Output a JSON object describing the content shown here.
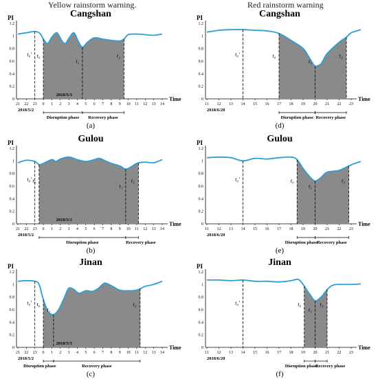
{
  "column_titles": {
    "left": "Yellow rainstorm warning.",
    "right": "Red rainstorm warning"
  },
  "colors": {
    "curve": "#2a9fd6",
    "shade": "#8a8a8a",
    "axis": "#000000"
  },
  "chart_data": [
    {
      "id": "a",
      "type": "area",
      "title": "Cangshan",
      "caption": "(a)",
      "ylabel": "PI",
      "xlabel": "Time",
      "yticks": [
        "0",
        "0.2",
        "0.4",
        "0.6",
        "0.8",
        "1",
        "1.2"
      ],
      "ylim": [
        0,
        1.2
      ],
      "x_ticks": [
        "21",
        "22",
        "23",
        "0",
        "1",
        "2",
        "3",
        "4",
        "5",
        "6",
        "7",
        "8",
        "9",
        "10",
        "11",
        "12",
        "13",
        "14"
      ],
      "date_labels": [
        "2018/5/2",
        "2018/5/3"
      ],
      "curve": [
        [
          0,
          1.03
        ],
        [
          1,
          1.05
        ],
        [
          2,
          1.07
        ],
        [
          2.6,
          1.04
        ],
        [
          3,
          0.95
        ],
        [
          3.5,
          0.88
        ],
        [
          4,
          0.98
        ],
        [
          4.6,
          1.05
        ],
        [
          5.2,
          0.92
        ],
        [
          5.6,
          0.88
        ],
        [
          6,
          0.96
        ],
        [
          6.6,
          1.05
        ],
        [
          7.1,
          0.92
        ],
        [
          7.6,
          0.82
        ],
        [
          8.2,
          0.9
        ],
        [
          9,
          0.97
        ],
        [
          10,
          0.95
        ],
        [
          11,
          0.93
        ],
        [
          12,
          0.92
        ],
        [
          12.5,
          0.95
        ],
        [
          13,
          1.02
        ],
        [
          14,
          1.03
        ],
        [
          15,
          1.02
        ],
        [
          16,
          1.01
        ],
        [
          17,
          1.03
        ]
      ],
      "shade_range": [
        3,
        12.5
      ],
      "markers": [
        {
          "x": 2,
          "label": "t₀'"
        },
        {
          "x": 3,
          "label": "t₀"
        },
        {
          "x": 7.6,
          "label": "t₁"
        },
        {
          "x": 12.5,
          "label": "t₂"
        }
      ],
      "phases": [
        {
          "label": "Disruption phase",
          "from": 3,
          "to": 7.6
        },
        {
          "label": "Recovery phase",
          "from": 7.6,
          "to": 12.5
        }
      ]
    },
    {
      "id": "b",
      "type": "area",
      "title": "Gulou",
      "caption": "(b)",
      "ylabel": "PI",
      "xlabel": "Time",
      "yticks": [
        "0",
        "0.2",
        "0.4",
        "0.6",
        "0.8",
        "1",
        "1.2"
      ],
      "ylim": [
        0,
        1.2
      ],
      "x_ticks": [
        "21",
        "22",
        "23",
        "0",
        "1",
        "2",
        "3",
        "4",
        "5",
        "6",
        "7",
        "8",
        "9",
        "10",
        "11",
        "12",
        "13",
        "14"
      ],
      "date_labels": [
        "2018/5/2",
        "2018/5/3"
      ],
      "curve": [
        [
          0,
          0.97
        ],
        [
          1,
          1.01
        ],
        [
          2,
          0.99
        ],
        [
          2.5,
          0.94
        ],
        [
          3,
          0.96
        ],
        [
          4,
          1.02
        ],
        [
          4.5,
          0.99
        ],
        [
          5,
          1.03
        ],
        [
          6,
          1.06
        ],
        [
          7,
          1.02
        ],
        [
          8,
          0.99
        ],
        [
          9,
          1.02
        ],
        [
          9.6,
          1.04
        ],
        [
          10.3,
          1.0
        ],
        [
          11,
          0.96
        ],
        [
          12,
          0.92
        ],
        [
          12.7,
          0.87
        ],
        [
          13.4,
          0.91
        ],
        [
          14,
          0.96
        ],
        [
          15,
          0.98
        ],
        [
          16,
          0.97
        ],
        [
          17,
          1.02
        ]
      ],
      "shade_range": [
        2.5,
        14.2
      ],
      "markers": [
        {
          "x": 2,
          "label": "t₀'"
        },
        {
          "x": 2.5,
          "label": "t₀"
        },
        {
          "x": 12.7,
          "label": "t₁"
        },
        {
          "x": 14.2,
          "label": "t₂"
        }
      ],
      "phases": [
        {
          "label": "Disruption phase",
          "from": 2.5,
          "to": 12.7
        },
        {
          "label": "Recovery phase",
          "from": 12.7,
          "to": 14.2
        }
      ]
    },
    {
      "id": "c",
      "type": "area",
      "title": "Jinan",
      "caption": "(c)",
      "ylabel": "PI",
      "xlabel": "Time",
      "yticks": [
        "0",
        "0.2",
        "0.4",
        "0.6",
        "0.8",
        "1",
        "1.2"
      ],
      "ylim": [
        0,
        1.2
      ],
      "x_ticks": [
        "21",
        "22",
        "23",
        "0",
        "1",
        "2",
        "3",
        "4",
        "5",
        "6",
        "7",
        "8",
        "9",
        "10",
        "11",
        "12",
        "13",
        "14"
      ],
      "date_labels": [
        "2018/5/2",
        "2018/5/3"
      ],
      "curve": [
        [
          0,
          1.05
        ],
        [
          1,
          1.06
        ],
        [
          2,
          1.05
        ],
        [
          2.5,
          1.0
        ],
        [
          3,
          0.76
        ],
        [
          3.6,
          0.56
        ],
        [
          4.2,
          0.52
        ],
        [
          4.8,
          0.6
        ],
        [
          5.5,
          0.8
        ],
        [
          6,
          0.94
        ],
        [
          6.6,
          0.92
        ],
        [
          7.2,
          0.86
        ],
        [
          8,
          0.9
        ],
        [
          8.8,
          0.89
        ],
        [
          9.5,
          0.94
        ],
        [
          10.2,
          1.02
        ],
        [
          11,
          0.98
        ],
        [
          12,
          0.91
        ],
        [
          13,
          0.9
        ],
        [
          14,
          0.91
        ],
        [
          15,
          0.97
        ],
        [
          16,
          1.0
        ],
        [
          17,
          1.05
        ]
      ],
      "shade_range": [
        3,
        14.4
      ],
      "markers": [
        {
          "x": 2,
          "label": "t₀'"
        },
        {
          "x": 3,
          "label": "t₀"
        },
        {
          "x": 4.2,
          "label": "t₁"
        },
        {
          "x": 14.4,
          "label": "t₂"
        }
      ],
      "phases": [
        {
          "label": "Disruption phase",
          "from": 3,
          "to": 4.2
        },
        {
          "label": "Recovery phase",
          "from": 4.2,
          "to": 14.4
        }
      ]
    },
    {
      "id": "d",
      "type": "area",
      "title": "Cangshan",
      "caption": "(d)",
      "ylabel": "PI",
      "xlabel": "Time",
      "yticks": [
        "0",
        "0.2",
        "0.4",
        "0.6",
        "0.8",
        "1",
        "1.2"
      ],
      "ylim": [
        0,
        1.2
      ],
      "x_ticks": [
        "11",
        "12",
        "13",
        "14",
        "15",
        "16",
        "17",
        "18",
        "19",
        "20",
        "21",
        "22",
        "23"
      ],
      "date_labels": [
        "2018/6/20"
      ],
      "curve": [
        [
          0,
          1.06
        ],
        [
          1,
          1.09
        ],
        [
          2,
          1.1
        ],
        [
          3,
          1.1
        ],
        [
          4,
          1.09
        ],
        [
          5,
          1.08
        ],
        [
          6,
          1.04
        ],
        [
          7,
          0.93
        ],
        [
          8,
          0.8
        ],
        [
          8.5,
          0.66
        ],
        [
          9,
          0.52
        ],
        [
          9.5,
          0.56
        ],
        [
          10,
          0.72
        ],
        [
          11,
          0.9
        ],
        [
          11.6,
          0.98
        ],
        [
          12,
          1.05
        ],
        [
          12.8,
          1.1
        ]
      ],
      "shade_range": [
        6,
        11.6
      ],
      "markers": [
        {
          "x": 3,
          "label": "t₀'"
        },
        {
          "x": 6,
          "label": "t₀"
        },
        {
          "x": 9,
          "label": "t₁"
        },
        {
          "x": 11.6,
          "label": "t₂"
        }
      ],
      "phases": [
        {
          "label": "Disruption phase",
          "from": 6,
          "to": 9
        },
        {
          "label": "Recovery phase",
          "from": 9,
          "to": 11.6
        }
      ]
    },
    {
      "id": "e",
      "type": "area",
      "title": "Gulou",
      "caption": "(e)",
      "ylabel": "PI",
      "xlabel": "Time",
      "yticks": [
        "0",
        "0.2",
        "0.4",
        "0.6",
        "0.8",
        "1",
        "1.2"
      ],
      "ylim": [
        0,
        1.2
      ],
      "x_ticks": [
        "11",
        "12",
        "13",
        "14",
        "15",
        "16",
        "17",
        "18",
        "19",
        "20",
        "21",
        "22",
        "23"
      ],
      "date_labels": [
        "2018/6/20"
      ],
      "curve": [
        [
          0,
          1.05
        ],
        [
          1,
          1.06
        ],
        [
          2,
          1.05
        ],
        [
          3,
          1.0
        ],
        [
          4,
          1.04
        ],
        [
          5,
          1.03
        ],
        [
          6,
          1.05
        ],
        [
          7,
          1.06
        ],
        [
          7.5,
          1.02
        ],
        [
          8,
          0.88
        ],
        [
          8.5,
          0.76
        ],
        [
          9,
          0.68
        ],
        [
          9.5,
          0.74
        ],
        [
          10,
          0.82
        ],
        [
          11,
          0.85
        ],
        [
          11.8,
          0.92
        ],
        [
          12.3,
          0.96
        ],
        [
          12.8,
          0.99
        ]
      ],
      "shade_range": [
        7.5,
        11.8
      ],
      "markers": [
        {
          "x": 3,
          "label": "t₀'"
        },
        {
          "x": 7.5,
          "label": "t₀"
        },
        {
          "x": 9,
          "label": "t₁"
        },
        {
          "x": 11.8,
          "label": "t₂"
        }
      ],
      "phases": [
        {
          "label": "Disruption phase",
          "from": 7.5,
          "to": 9
        },
        {
          "label": "Recovery phase",
          "from": 9,
          "to": 11.8
        }
      ]
    },
    {
      "id": "f",
      "type": "area",
      "title": "Jinan",
      "caption": "(f)",
      "ylabel": "PI",
      "xlabel": "Time",
      "yticks": [
        "0",
        "0.2",
        "0.4",
        "0.6",
        "0.8",
        "1",
        "1.2"
      ],
      "ylim": [
        0,
        1.2
      ],
      "x_ticks": [
        "11",
        "12",
        "13",
        "14",
        "15",
        "16",
        "17",
        "18",
        "19",
        "20",
        "21",
        "22",
        "23"
      ],
      "date_labels": [
        "2018/6/20"
      ],
      "curve": [
        [
          0,
          1.07
        ],
        [
          1,
          1.07
        ],
        [
          2,
          1.06
        ],
        [
          3,
          1.07
        ],
        [
          4,
          1.05
        ],
        [
          5,
          1.05
        ],
        [
          6,
          1.04
        ],
        [
          7,
          1.06
        ],
        [
          7.6,
          1.08
        ],
        [
          8,
          1.0
        ],
        [
          8.5,
          0.86
        ],
        [
          9,
          0.74
        ],
        [
          9.5,
          0.8
        ],
        [
          10,
          0.92
        ],
        [
          10.5,
          0.99
        ],
        [
          11,
          1.0
        ],
        [
          12,
          1.0
        ],
        [
          12.8,
          1.01
        ]
      ],
      "shade_range": [
        8.1,
        10.0
      ],
      "markers": [
        {
          "x": 3,
          "label": "t₀'"
        },
        {
          "x": 8.1,
          "label": "t₀"
        },
        {
          "x": 9,
          "label": "t₁"
        },
        {
          "x": 10.0,
          "label": "t₂"
        }
      ],
      "phases": [
        {
          "label": "Disruption phase",
          "from": 8.1,
          "to": 9
        },
        {
          "label": "Recovery phase",
          "from": 9,
          "to": 10.0
        }
      ]
    }
  ]
}
